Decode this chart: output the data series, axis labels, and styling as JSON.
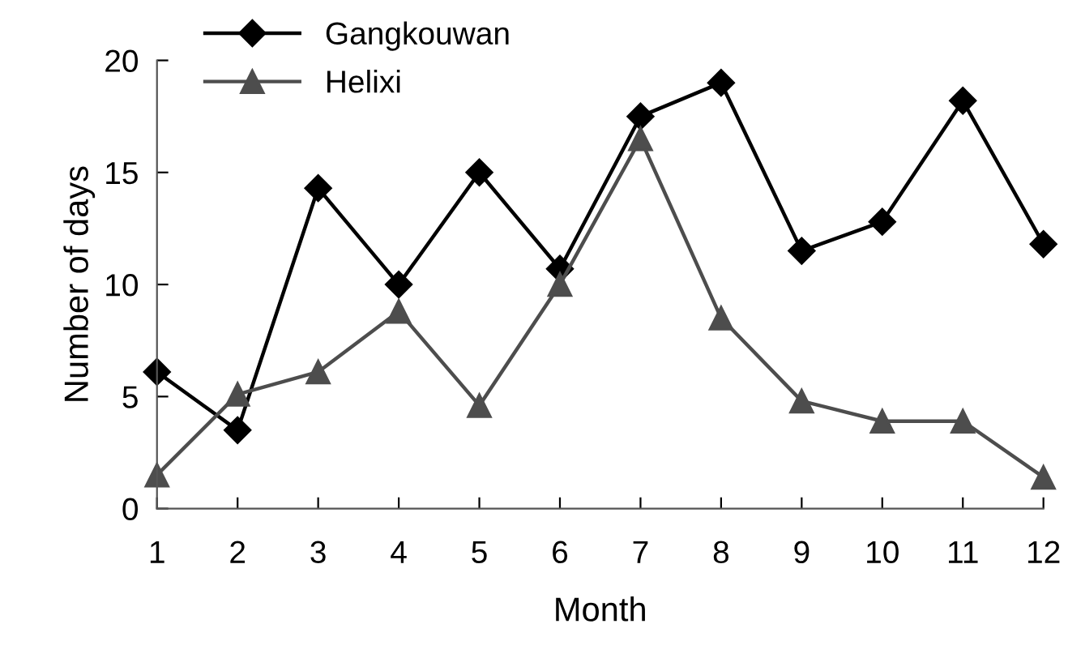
{
  "chart_data": {
    "type": "line",
    "xlabel": "Month",
    "ylabel": "Number of days",
    "x": [
      1,
      2,
      3,
      4,
      5,
      6,
      7,
      8,
      9,
      10,
      11,
      12
    ],
    "series": [
      {
        "name": "Gangkouwan",
        "color": "#000000",
        "marker": "diamond",
        "values": [
          6.1,
          3.5,
          14.3,
          10,
          15,
          10.7,
          17.5,
          19,
          11.5,
          12.8,
          18.2,
          11.8
        ]
      },
      {
        "name": "Helixi",
        "color": "#4d4d4d",
        "marker": "triangle",
        "values": [
          1.5,
          5.1,
          6.1,
          8.8,
          4.6,
          10,
          16.5,
          8.5,
          4.8,
          3.9,
          3.9,
          1.4
        ]
      }
    ],
    "xlim": [
      1,
      12
    ],
    "xticks": [
      1,
      2,
      3,
      4,
      5,
      6,
      7,
      8,
      9,
      10,
      11,
      12
    ],
    "ylim": [
      0,
      20
    ],
    "yticks": [
      0,
      5,
      10,
      15,
      20
    ],
    "grid": false,
    "legend": "top left",
    "line_style": "solid"
  }
}
